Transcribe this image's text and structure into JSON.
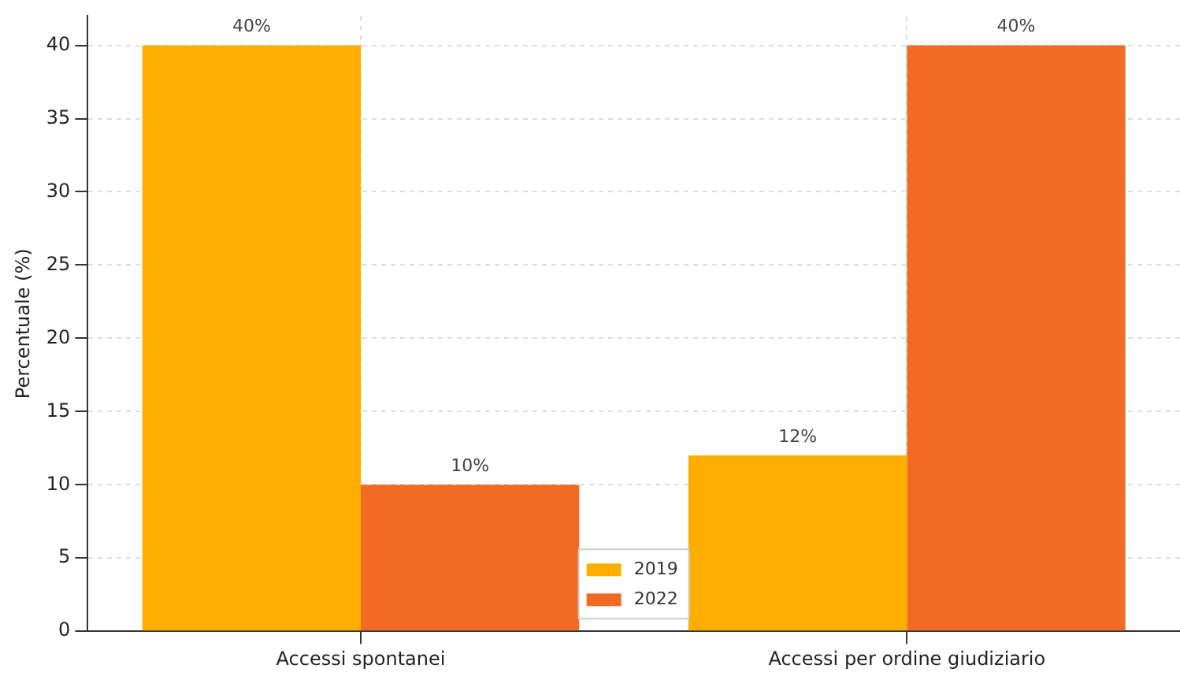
{
  "chart_data": {
    "type": "bar",
    "ylabel": "Percentuale (%)",
    "categories": [
      "Accessi spontanei",
      "Accessi per ordine giudiziario"
    ],
    "series": [
      {
        "name": "2019",
        "color": "#ffae00",
        "values": [
          40,
          12
        ],
        "value_labels": [
          "40%",
          "12%"
        ]
      },
      {
        "name": "2022",
        "color": "#f26b24",
        "values": [
          10,
          40
        ],
        "value_labels": [
          "10%",
          "40%"
        ]
      }
    ],
    "ylim": [
      0,
      42
    ],
    "yticks": [
      0,
      5,
      10,
      15,
      20,
      25,
      30,
      35,
      40
    ],
    "grid": true,
    "legend": "bottom"
  }
}
